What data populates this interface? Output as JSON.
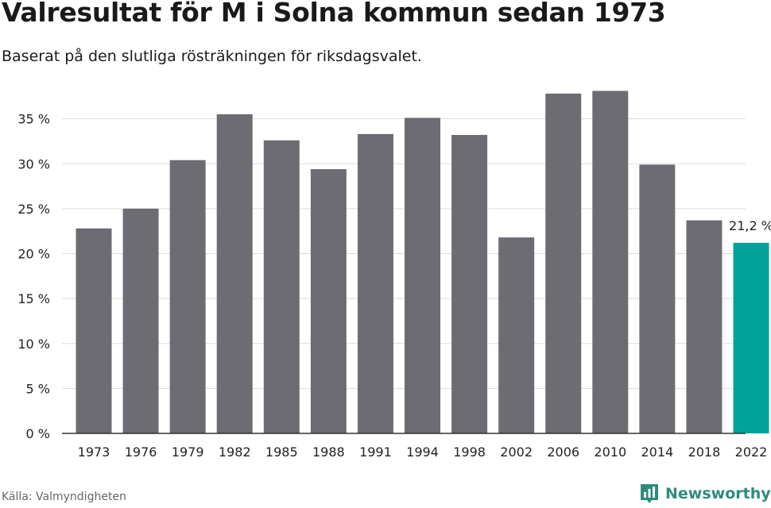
{
  "header": {
    "title": "Valresultat för M i Solna kommun sedan 1973",
    "subtitle": "Baserat på den slutliga rösträkningen för riksdagsvalet."
  },
  "footer": {
    "source": "Källa: Valmyndigheten",
    "brand_name": "Newsworthy",
    "brand_icon": "bar-chart-logo-icon"
  },
  "colors": {
    "bar": "#6d6c72",
    "highlight": "#00a398",
    "grid": "#dddddd",
    "axis": "#333333",
    "text": "#222222",
    "brand": "#2e8b7a"
  },
  "chart_data": {
    "type": "bar",
    "categories": [
      "1973",
      "1976",
      "1979",
      "1982",
      "1985",
      "1988",
      "1991",
      "1994",
      "1998",
      "2002",
      "2006",
      "2010",
      "2014",
      "2018",
      "2022"
    ],
    "values": [
      22.8,
      25.0,
      30.4,
      35.5,
      32.6,
      29.4,
      33.3,
      35.1,
      33.2,
      21.8,
      37.8,
      38.1,
      29.9,
      23.7,
      21.2
    ],
    "highlight_index": 14,
    "highlight_label": "21,2 %",
    "yticks": [
      0,
      5,
      10,
      15,
      20,
      25,
      30,
      35
    ],
    "ytick_labels": [
      "0 %",
      "5 %",
      "10 %",
      "15 %",
      "20 %",
      "25 %",
      "30 %",
      "35 %"
    ],
    "ylim": [
      0,
      40
    ],
    "grid": true,
    "legend": "none",
    "xlabel": "",
    "ylabel": ""
  }
}
